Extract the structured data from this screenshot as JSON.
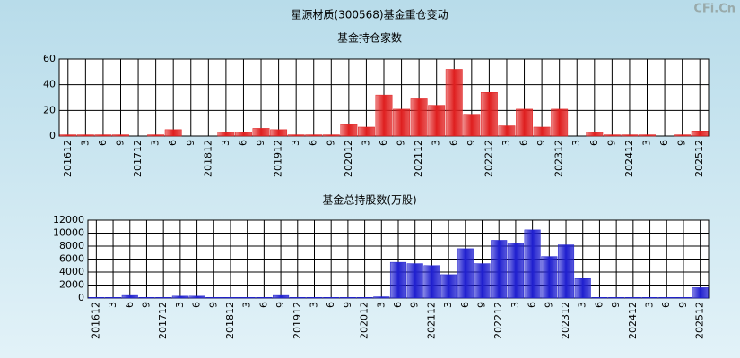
{
  "title": "星源材质(300568)基金重仓变动",
  "watermark": "CFi.Cn",
  "chart_data": [
    {
      "type": "bar",
      "title": "基金持仓家数",
      "color": "#e02020",
      "categories": [
        "201612",
        "3",
        "6",
        "9",
        "201712",
        "3",
        "6",
        "9",
        "201812",
        "3",
        "6",
        "9",
        "201912",
        "3",
        "6",
        "9",
        "202012",
        "3",
        "6",
        "9",
        "202112",
        "3",
        "6",
        "9",
        "202212",
        "3",
        "6",
        "9",
        "202312",
        "3",
        "6",
        "9",
        "202412",
        "3",
        "6",
        "9",
        "202512"
      ],
      "values": [
        1,
        1,
        1,
        1,
        0,
        1,
        5,
        0,
        0,
        3,
        3,
        6,
        5,
        1,
        1,
        1,
        9,
        7,
        32,
        21,
        29,
        24,
        52,
        17,
        34,
        8,
        21,
        7,
        21,
        0,
        3,
        1,
        1,
        1,
        0,
        1,
        4
      ],
      "ylim": [
        0,
        60
      ],
      "yticks": [
        0,
        20,
        40,
        60
      ],
      "grid": true
    },
    {
      "type": "bar",
      "title": "基金总持股数(万股)",
      "color": "#2020d0",
      "categories": [
        "201612",
        "3",
        "6",
        "9",
        "201712",
        "3",
        "6",
        "9",
        "201812",
        "3",
        "6",
        "9",
        "201912",
        "3",
        "6",
        "9",
        "202012",
        "3",
        "6",
        "9",
        "202112",
        "3",
        "6",
        "9",
        "202212",
        "3",
        "6",
        "9",
        "202312",
        "3",
        "6",
        "9",
        "202412",
        "3",
        "6",
        "9",
        "202512"
      ],
      "values": [
        100,
        100,
        400,
        100,
        100,
        300,
        300,
        100,
        100,
        100,
        100,
        400,
        100,
        100,
        100,
        100,
        100,
        200,
        5500,
        5300,
        5000,
        3600,
        7600,
        5300,
        8900,
        8500,
        10500,
        6400,
        8200,
        3000,
        100,
        100,
        100,
        100,
        100,
        100,
        1600
      ],
      "ylim": [
        0,
        12000
      ],
      "yticks": [
        0,
        2000,
        4000,
        6000,
        8000,
        10000,
        12000
      ],
      "grid": true
    }
  ]
}
